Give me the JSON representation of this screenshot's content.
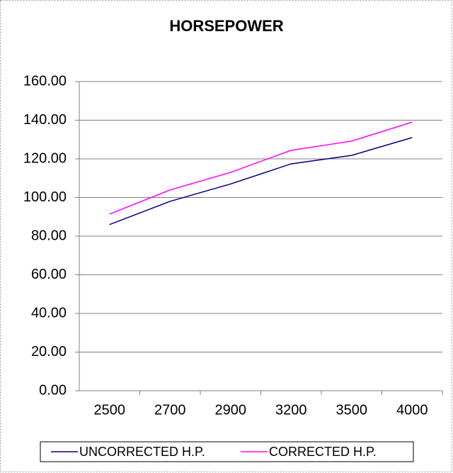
{
  "chart_data": {
    "type": "line",
    "title": "HORSEPOWER",
    "categories": [
      "2500",
      "2700",
      "2900",
      "3200",
      "3500",
      "4000"
    ],
    "series": [
      {
        "name": "UNCORRECTED H.P.",
        "color": "#000080",
        "values": [
          86,
          98,
          107,
          117.4,
          121.8,
          131
        ]
      },
      {
        "name": "CORRECTED H.P.",
        "color": "#ff00ff",
        "values": [
          91.4,
          103.9,
          113,
          124.4,
          129.2,
          139
        ]
      }
    ],
    "ylim": [
      0,
      160
    ],
    "yticks": [
      {
        "value": 0,
        "label": "0.00"
      },
      {
        "value": 20,
        "label": "20.00"
      },
      {
        "value": 40,
        "label": "40.00"
      },
      {
        "value": 60,
        "label": "60.00"
      },
      {
        "value": 80,
        "label": "80.00"
      },
      {
        "value": 100,
        "label": "100.00"
      },
      {
        "value": 120,
        "label": "120.00"
      },
      {
        "value": 140,
        "label": "140.00"
      },
      {
        "value": 160,
        "label": "160.00"
      }
    ],
    "grid": true,
    "legend": "bottom"
  }
}
